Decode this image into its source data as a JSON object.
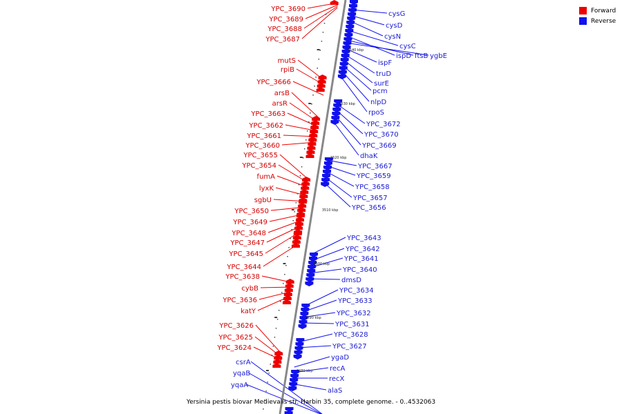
{
  "legend": [
    {
      "label": "Forward",
      "color": "#ee0000"
    },
    {
      "label": "Reverse",
      "color": "#1111ee"
    }
  ],
  "caption": "Yersinia pestis biovar Medievalis str. Harbin 35, complete genome. - 0..4532063",
  "colors": {
    "forward": "#ee0000",
    "reverse": "#1111ee",
    "backbone": "#888888"
  },
  "ticks": [
    "3540 kbp",
    "3530 kbp",
    "3520 kbp",
    "3510 kbp",
    "3500 kbp",
    "3490 kbp",
    "3480 kbp"
  ],
  "forward_genes": [
    "YPC_3690",
    "YPC_3689",
    "YPC_3688",
    "YPC_3687",
    "mutS",
    "rpiB",
    "YPC_3666",
    "arsB",
    "arsR",
    "YPC_3663",
    "YPC_3662",
    "YPC_3661",
    "YPC_3660",
    "YPC_3655",
    "YPC_3654",
    "fumA",
    "lyxK",
    "sgbU",
    "YPC_3650",
    "YPC_3649",
    "YPC_3648",
    "YPC_3647",
    "YPC_3645",
    "YPC_3644",
    "YPC_3638",
    "cybB",
    "YPC_3636",
    "katY",
    "YPC_3626",
    "YPC_3625",
    "YPC_3624"
  ],
  "reverse_genes": [
    "cysG",
    "cysD",
    "cysN",
    "cysC",
    "ispD",
    "ftsB",
    "ygbE",
    "ispF",
    "truD",
    "surE",
    "pcm",
    "nlpD",
    "rpoS",
    "YPC_3672",
    "YPC_3670",
    "YPC_3669",
    "dhaK",
    "YPC_3667",
    "YPC_3659",
    "YPC_3658",
    "YPC_3657",
    "YPC_3656",
    "YPC_3643",
    "YPC_3642",
    "YPC_3641",
    "YPC_3640",
    "dmsD",
    "YPC_3634",
    "YPC_3633",
    "YPC_3632",
    "YPC_3631",
    "YPC_3628",
    "YPC_3627",
    "ygaD",
    "recA",
    "recX",
    "alaS",
    "csrA",
    "yqaB",
    "yqaA"
  ]
}
